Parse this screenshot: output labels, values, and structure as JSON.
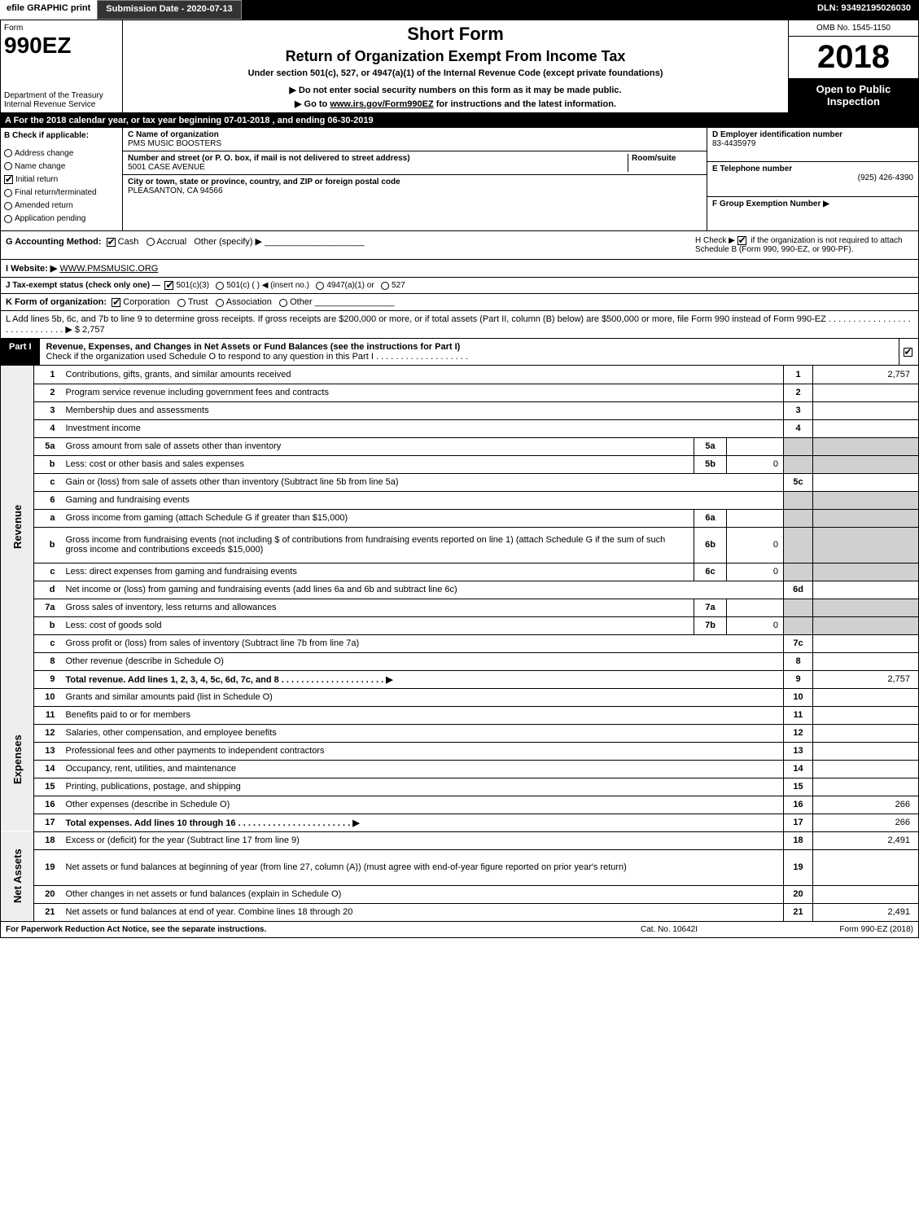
{
  "topbar": {
    "efile": "efile GRAPHIC print",
    "subdate_label": "Submission Date - 2020-07-13",
    "dln": "DLN: 93492195026030"
  },
  "header": {
    "form_label": "Form",
    "form_no": "990EZ",
    "dept": "Department of the Treasury",
    "irs": "Internal Revenue Service",
    "title1": "Short Form",
    "title2": "Return of Organization Exempt From Income Tax",
    "title3": "Under section 501(c), 527, or 4947(a)(1) of the Internal Revenue Code (except private foundations)",
    "title4": "▶ Do not enter social security numbers on this form as it may be made public.",
    "title5_pre": "▶ Go to ",
    "title5_link": "www.irs.gov/Form990EZ",
    "title5_post": " for instructions and the latest information.",
    "omb": "OMB No. 1545-1150",
    "year": "2018",
    "open": "Open to Public Inspection"
  },
  "rowA": {
    "text_pre": "A For the 2018 calendar year, or tax year beginning ",
    "begin": "07-01-2018",
    "mid": " , and ending ",
    "end": "06-30-2019"
  },
  "boxB": {
    "label": "B Check if applicable:",
    "items": [
      "Address change",
      "Name change",
      "Initial return",
      "Final return/terminated",
      "Amended return",
      "Application pending"
    ],
    "checked_index": 2
  },
  "boxC": {
    "name_label": "C Name of organization",
    "name": "PMS MUSIC BOOSTERS",
    "street_label": "Number and street (or P. O. box, if mail is not delivered to street address)",
    "street": "5001 CASE AVENUE",
    "room_label": "Room/suite",
    "city_label": "City or town, state or province, country, and ZIP or foreign postal code",
    "city": "PLEASANTON, CA  94566"
  },
  "boxD": {
    "label": "D Employer identification number",
    "value": "83-4435979"
  },
  "boxE": {
    "label": "E Telephone number",
    "value": "(925) 426-4390"
  },
  "boxF": {
    "label": "F Group Exemption Number  ▶",
    "value": ""
  },
  "boxG": {
    "label": "G Accounting Method:",
    "cash": "Cash",
    "accrual": "Accrual",
    "other": "Other (specify) ▶",
    "cash_checked": true
  },
  "boxH": {
    "text1": "H  Check ▶ ",
    "text2": " if the organization is not required to attach Schedule B (Form 990, 990-EZ, or 990-PF).",
    "checked": true
  },
  "boxI": {
    "label": "I Website: ▶",
    "value": "WWW.PMSMUSIC.ORG"
  },
  "boxJ": {
    "label": "J Tax-exempt status (check only one) —",
    "o1": "501(c)(3)",
    "o2": "501(c) (    ) ◀ (insert no.)",
    "o3": "4947(a)(1) or",
    "o4": "527",
    "o1_checked": true
  },
  "boxK": {
    "label": "K Form of organization:",
    "o1": "Corporation",
    "o2": "Trust",
    "o3": "Association",
    "o4": "Other",
    "o1_checked": true
  },
  "boxL": {
    "text": "L Add lines 5b, 6c, and 7b to line 9 to determine gross receipts. If gross receipts are $200,000 or more, or if total assets (Part II, column (B) below) are $500,000 or more, file Form 990 instead of Form 990-EZ  .  .  .  .  .  .  .  .  .  .  .  .  .  .  .  .  .  .  .  .  .  .  .  .  .  .  .  .  .  ▶ $ ",
    "value": "2,757"
  },
  "part1": {
    "tag": "Part I",
    "title": "Revenue, Expenses, and Changes in Net Assets or Fund Balances (see the instructions for Part I)",
    "sub": "Check if the organization used Schedule O to respond to any question in this Part I  .  .  .  .  .  .  .  .  .  .  .  .  .  .  .  .  .  .  .",
    "checked": true
  },
  "sections": {
    "revenue_label": "Revenue",
    "expenses_label": "Expenses",
    "netassets_label": "Net Assets"
  },
  "lines": [
    {
      "sec": "rev",
      "n": "1",
      "desc": "Contributions, gifts, grants, and similar amounts received",
      "rn": "1",
      "rv": "2,757"
    },
    {
      "sec": "rev",
      "n": "2",
      "desc": "Program service revenue including government fees and contracts",
      "rn": "2",
      "rv": ""
    },
    {
      "sec": "rev",
      "n": "3",
      "desc": "Membership dues and assessments",
      "rn": "3",
      "rv": ""
    },
    {
      "sec": "rev",
      "n": "4",
      "desc": "Investment income",
      "rn": "4",
      "rv": ""
    },
    {
      "sec": "rev",
      "n": "5a",
      "desc": "Gross amount from sale of assets other than inventory",
      "sn": "5a",
      "sv": "",
      "shade_r": true
    },
    {
      "sec": "rev",
      "n": "b",
      "desc": "Less: cost or other basis and sales expenses",
      "sn": "5b",
      "sv": "0",
      "shade_r": true
    },
    {
      "sec": "rev",
      "n": "c",
      "desc": "Gain or (loss) from sale of assets other than inventory (Subtract line 5b from line 5a)",
      "rn": "5c",
      "rv": ""
    },
    {
      "sec": "rev",
      "n": "6",
      "desc": "Gaming and fundraising events",
      "shade_r": true,
      "no_rn": true
    },
    {
      "sec": "rev",
      "n": "a",
      "desc": "Gross income from gaming (attach Schedule G if greater than $15,000)",
      "sn": "6a",
      "sv": "",
      "shade_r": true
    },
    {
      "sec": "rev",
      "n": "b",
      "desc": "Gross income from fundraising events (not including $                     of contributions from fundraising events reported on line 1) (attach Schedule G if the sum of such gross income and contributions exceeds $15,000)",
      "sn": "6b",
      "sv": "0",
      "shade_r": true,
      "tall": true
    },
    {
      "sec": "rev",
      "n": "c",
      "desc": "Less: direct expenses from gaming and fundraising events",
      "sn": "6c",
      "sv": "0",
      "shade_r": true
    },
    {
      "sec": "rev",
      "n": "d",
      "desc": "Net income or (loss) from gaming and fundraising events (add lines 6a and 6b and subtract line 6c)",
      "rn": "6d",
      "rv": ""
    },
    {
      "sec": "rev",
      "n": "7a",
      "desc": "Gross sales of inventory, less returns and allowances",
      "sn": "7a",
      "sv": "",
      "shade_r": true
    },
    {
      "sec": "rev",
      "n": "b",
      "desc": "Less: cost of goods sold",
      "sn": "7b",
      "sv": "0",
      "shade_r": true
    },
    {
      "sec": "rev",
      "n": "c",
      "desc": "Gross profit or (loss) from sales of inventory (Subtract line 7b from line 7a)",
      "rn": "7c",
      "rv": ""
    },
    {
      "sec": "rev",
      "n": "8",
      "desc": "Other revenue (describe in Schedule O)",
      "rn": "8",
      "rv": ""
    },
    {
      "sec": "rev",
      "n": "9",
      "desc": "Total revenue. Add lines 1, 2, 3, 4, 5c, 6d, 7c, and 8   .  .  .  .  .  .  .  .  .  .  .  .  .  .  .  .  .  .  .  .  .  ▶",
      "rn": "9",
      "rv": "2,757",
      "bold": true
    },
    {
      "sec": "exp",
      "n": "10",
      "desc": "Grants and similar amounts paid (list in Schedule O)",
      "rn": "10",
      "rv": ""
    },
    {
      "sec": "exp",
      "n": "11",
      "desc": "Benefits paid to or for members",
      "rn": "11",
      "rv": ""
    },
    {
      "sec": "exp",
      "n": "12",
      "desc": "Salaries, other compensation, and employee benefits",
      "rn": "12",
      "rv": ""
    },
    {
      "sec": "exp",
      "n": "13",
      "desc": "Professional fees and other payments to independent contractors",
      "rn": "13",
      "rv": ""
    },
    {
      "sec": "exp",
      "n": "14",
      "desc": "Occupancy, rent, utilities, and maintenance",
      "rn": "14",
      "rv": ""
    },
    {
      "sec": "exp",
      "n": "15",
      "desc": "Printing, publications, postage, and shipping",
      "rn": "15",
      "rv": ""
    },
    {
      "sec": "exp",
      "n": "16",
      "desc": "Other expenses (describe in Schedule O)",
      "rn": "16",
      "rv": "266"
    },
    {
      "sec": "exp",
      "n": "17",
      "desc": "Total expenses. Add lines 10 through 16        .  .  .  .  .  .  .  .  .  .  .  .  .  .  .  .  .  .  .  .  .  .  .  ▶",
      "rn": "17",
      "rv": "266",
      "bold": true
    },
    {
      "sec": "net",
      "n": "18",
      "desc": "Excess or (deficit) for the year (Subtract line 17 from line 9)",
      "rn": "18",
      "rv": "2,491"
    },
    {
      "sec": "net",
      "n": "19",
      "desc": "Net assets or fund balances at beginning of year (from line 27, column (A)) (must agree with end-of-year figure reported on prior year's return)",
      "rn": "19",
      "rv": "",
      "tall": true
    },
    {
      "sec": "net",
      "n": "20",
      "desc": "Other changes in net assets or fund balances (explain in Schedule O)",
      "rn": "20",
      "rv": ""
    },
    {
      "sec": "net",
      "n": "21",
      "desc": "Net assets or fund balances at end of year. Combine lines 18 through 20",
      "rn": "21",
      "rv": "2,491"
    }
  ],
  "footer": {
    "left": "For Paperwork Reduction Act Notice, see the separate instructions.",
    "center": "Cat. No. 10642I",
    "right": "Form 990-EZ (2018)"
  },
  "colors": {
    "black": "#000000",
    "grey_shade": "#d0d0d0",
    "grey_vlab": "#eeeeee"
  }
}
